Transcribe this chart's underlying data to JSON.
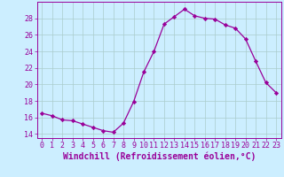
{
  "x": [
    0,
    1,
    2,
    3,
    4,
    5,
    6,
    7,
    8,
    9,
    10,
    11,
    12,
    13,
    14,
    15,
    16,
    17,
    18,
    19,
    20,
    21,
    22,
    23
  ],
  "y": [
    16.5,
    16.2,
    15.7,
    15.6,
    15.2,
    14.8,
    14.4,
    14.2,
    15.3,
    17.9,
    21.5,
    24.0,
    27.3,
    28.2,
    29.1,
    28.3,
    28.0,
    27.9,
    27.2,
    26.8,
    25.5,
    22.8,
    20.2,
    19.0
  ],
  "line_color": "#990099",
  "marker": "D",
  "marker_size": 2.2,
  "bg_color": "#cceeff",
  "grid_color": "#aacccc",
  "ylim": [
    13.5,
    30.0
  ],
  "yticks": [
    14,
    16,
    18,
    20,
    22,
    24,
    26,
    28
  ],
  "xlabel": "Windchill (Refroidissement éolien,°C)",
  "tick_fontsize": 6.0,
  "label_fontsize": 7.0
}
